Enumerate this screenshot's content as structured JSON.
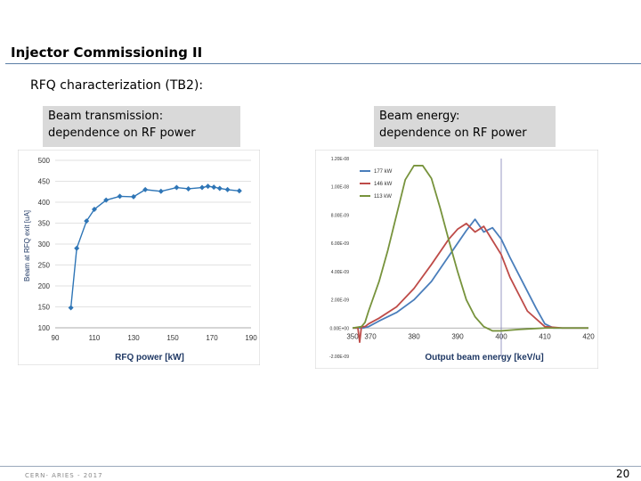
{
  "slide": {
    "title": "Injector Commissioning II",
    "subtitle": "RFQ characterization (TB2):",
    "caption_left": [
      "Beam transmission:",
      "dependence on RF power"
    ],
    "caption_right": [
      "Beam energy:",
      "dependence on RF power"
    ],
    "footer": "CERN- ARIES - 2017",
    "page_number": "20"
  },
  "colors": {
    "title_rule": "#5b7fa6",
    "caption_bg": "#d9d9d9",
    "marker": "#2e75b6",
    "blue": "#4a7ebb",
    "red": "#be4b48",
    "green": "#77933c",
    "vline": "#7f7fb5"
  },
  "chart_data": [
    {
      "type": "line",
      "xlabel": "RFQ power [kW]",
      "ylabel": "Beam at RFQ exit [uA]",
      "xlim": [
        90,
        190
      ],
      "ylim": [
        100,
        500
      ],
      "xticks": [
        "90",
        "110",
        "130",
        "150",
        "170",
        "190"
      ],
      "yticks": [
        "100",
        "150",
        "200",
        "250",
        "300",
        "350",
        "400",
        "450",
        "500"
      ],
      "grid": true,
      "series": [
        {
          "x": [
            98,
            101,
            106,
            110,
            116,
            123,
            130,
            136,
            144,
            152,
            158,
            165,
            168,
            171,
            174,
            178,
            184
          ],
          "y": [
            148,
            290,
            355,
            383,
            405,
            414,
            413,
            430,
            426,
            435,
            432,
            435,
            438,
            436,
            433,
            430,
            427
          ]
        }
      ]
    },
    {
      "type": "line",
      "xlabel": "Output beam energy [keV/u]",
      "xlim": [
        350,
        420
      ],
      "ylim": [
        -2e-09,
        1.2e-08
      ],
      "xticks": [
        "350",
        "370",
        "380",
        "390",
        "400",
        "410",
        "420"
      ],
      "yticks": [
        "-2.00E-09",
        "0.00E+00",
        "2.00E-09",
        "4.00E-09",
        "6.00E-09",
        "8.00E-09",
        "1.00E-08",
        "1.20E-08"
      ],
      "grid": false,
      "vline_x": 400,
      "legend": "top-left",
      "series": [
        {
          "name": "177 kW",
          "color": "#4a7ebb",
          "x": [
            350,
            362,
            368,
            372,
            376,
            380,
            384,
            388,
            392,
            394,
            396,
            398,
            400,
            402,
            404,
            406,
            408,
            410,
            412,
            416,
            420
          ],
          "y": [
            0,
            0,
            1e-10,
            5e-10,
            1.1e-09,
            2e-09,
            3.3e-09,
            5.1e-09,
            6.9e-09,
            7.7e-09,
            6.8e-09,
            7.1e-09,
            6.3e-09,
            5e-09,
            3.8e-09,
            2.6e-09,
            1.4e-09,
            3e-10,
            0,
            0,
            0
          ]
        },
        {
          "name": "146 kW",
          "color": "#be4b48",
          "x": [
            350,
            356,
            358,
            360,
            364,
            368,
            372,
            376,
            380,
            384,
            388,
            390,
            392,
            394,
            396,
            398,
            400,
            402,
            404,
            406,
            410,
            414,
            420
          ],
          "y": [
            0,
            0,
            -1e-09,
            1e-10,
            1e-10,
            3e-10,
            7e-10,
            1.5e-09,
            2.8e-09,
            4.5e-09,
            6.3e-09,
            7e-09,
            7.4e-09,
            6.8e-09,
            7.2e-09,
            6.2e-09,
            5.2e-09,
            3.6e-09,
            2.4e-09,
            1.2e-09,
            1e-10,
            0,
            0
          ]
        },
        {
          "name": "113 kW",
          "color": "#77933c",
          "x": [
            350,
            360,
            364,
            368,
            372,
            374,
            376,
            378,
            380,
            382,
            384,
            386,
            388,
            390,
            392,
            394,
            396,
            398,
            400,
            404,
            410,
            416,
            420
          ],
          "y": [
            0,
            1e-10,
            4e-10,
            1.2e-09,
            3.3e-09,
            5.5e-09,
            8e-09,
            1.05e-08,
            1.15e-08,
            1.15e-08,
            1.06e-08,
            8.5e-09,
            6.2e-09,
            4e-09,
            2e-09,
            8e-10,
            1e-10,
            -2e-10,
            -2e-10,
            -1e-10,
            0,
            0,
            0
          ]
        }
      ]
    }
  ]
}
